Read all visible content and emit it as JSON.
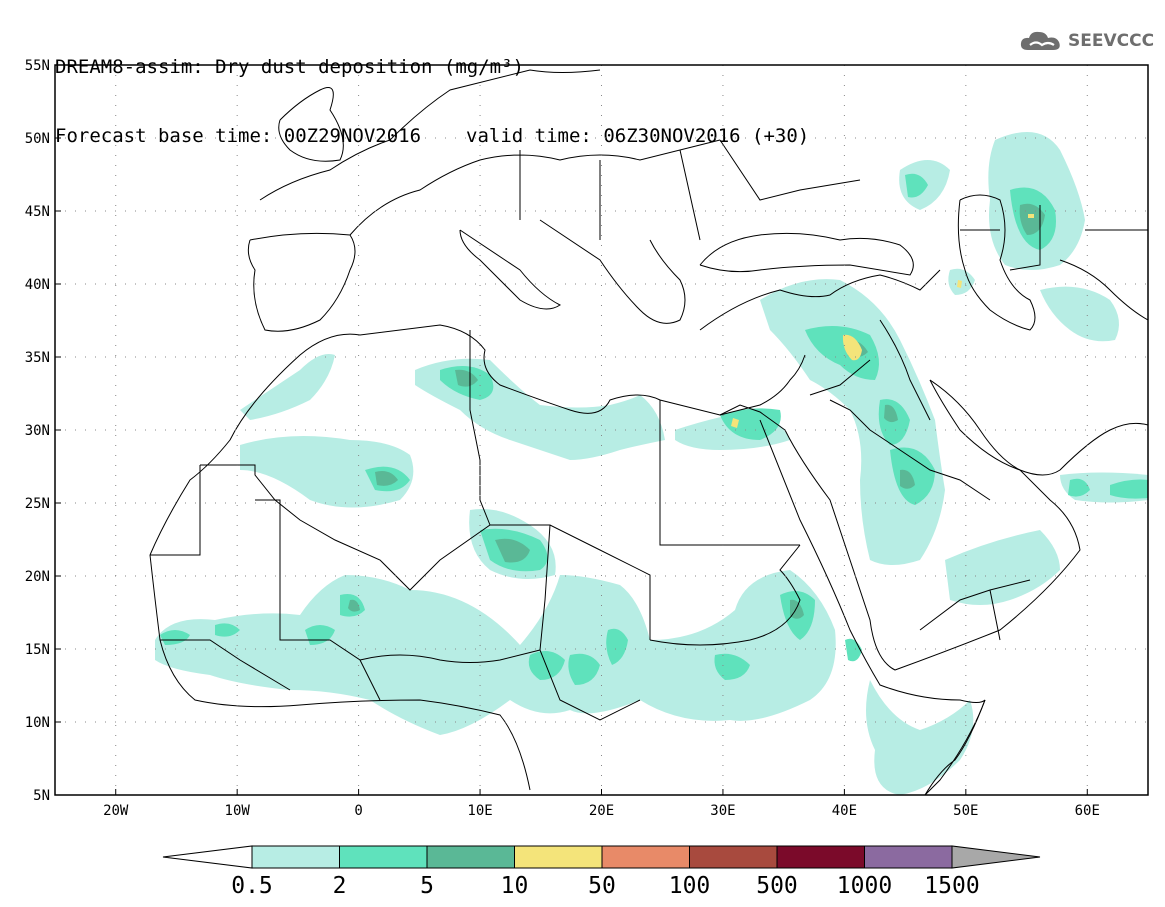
{
  "title": {
    "line1": "DREAM8-assim: Dry dust deposition (mg/m³)",
    "base_time": "Forecast base time: 00Z29NOV2016",
    "valid_time": "valid time: 06Z30NOV2016 (+30)"
  },
  "logo": {
    "text": "SEEVCCC",
    "icon": "cloud-logo-icon"
  },
  "map": {
    "lon_range": [
      -25,
      65
    ],
    "lat_range": [
      5,
      55
    ],
    "lat_ticks": [
      {
        "value": 55,
        "label": "55N"
      },
      {
        "value": 50,
        "label": "50N"
      },
      {
        "value": 45,
        "label": "45N"
      },
      {
        "value": 40,
        "label": "40N"
      },
      {
        "value": 35,
        "label": "35N"
      },
      {
        "value": 30,
        "label": "30N"
      },
      {
        "value": 25,
        "label": "25N"
      },
      {
        "value": 20,
        "label": "20N"
      },
      {
        "value": 15,
        "label": "15N"
      },
      {
        "value": 10,
        "label": "10N"
      },
      {
        "value": 5,
        "label": "5N"
      }
    ],
    "lon_ticks": [
      {
        "value": -20,
        "label": "20W"
      },
      {
        "value": -10,
        "label": "10W"
      },
      {
        "value": 0,
        "label": "0"
      },
      {
        "value": 10,
        "label": "10E"
      },
      {
        "value": 20,
        "label": "20E"
      },
      {
        "value": 30,
        "label": "30E"
      },
      {
        "value": 40,
        "label": "40E"
      },
      {
        "value": 50,
        "label": "50E"
      },
      {
        "value": 60,
        "label": "60E"
      }
    ],
    "grid": "dotted"
  },
  "colorbar": {
    "labels": [
      "0.5",
      "2",
      "5",
      "10",
      "50",
      "100",
      "500",
      "1000",
      "1500"
    ],
    "colors": [
      "#b7ede4",
      "#5fe2bc",
      "#5ab896",
      "#f4e47a",
      "#e88a68",
      "#a84a3e",
      "#7b0a2a",
      "#8b6aa0"
    ],
    "extend_low": "#ffffff",
    "extend_high": "#a8a8a8"
  }
}
